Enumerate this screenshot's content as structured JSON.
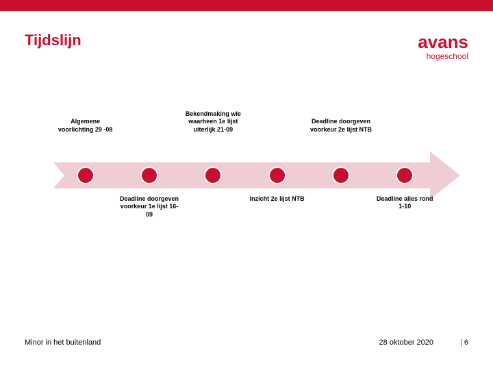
{
  "colors": {
    "brand": "#c8102e",
    "arrow_fill": "#f0cdd2",
    "node_fill": "#c8102e",
    "tail_cut": "#ffffff",
    "text": "#000000"
  },
  "title": "Tijdslijn",
  "logo": {
    "main": "avans",
    "sub": "hogeschool"
  },
  "timeline": {
    "nodes": [
      {
        "top": "Algemene voorlichting 29 -08",
        "bottom": ""
      },
      {
        "top": "",
        "bottom": "Deadline doorgeven voorkeur 1e lijst 16-09"
      },
      {
        "top": "Bekendmaking wie waarheen 1e lijst uiterlijk 21-09",
        "bottom": ""
      },
      {
        "top": "",
        "bottom": "Inzicht 2e lijst NTB"
      },
      {
        "top": "Deadline doorgeven voorkeur 2e lijst NTB",
        "bottom": ""
      },
      {
        "top": "",
        "bottom": "Deadline alles rond 1-10"
      }
    ]
  },
  "footer": {
    "left": "Minor in het buitenland",
    "date": "28 oktober 2020",
    "page": "6"
  }
}
